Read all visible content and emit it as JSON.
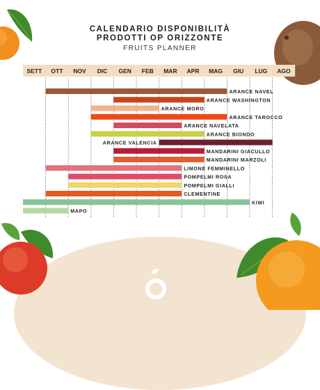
{
  "title": {
    "line1": "CALENDARIO DISPONIBILITÀ",
    "line2": "PRODOTTI OP ORIZZONTE",
    "subtitle": "FRUITS PLANNER"
  },
  "chart_data": {
    "type": "gantt",
    "months": [
      "SETT",
      "OTT",
      "NOV",
      "DIC",
      "GEN",
      "FEB",
      "MAR",
      "APR",
      "MAG",
      "GIU",
      "LUG",
      "AGO"
    ],
    "grid": "vertical dotted lines between months",
    "products": [
      {
        "name": "ARANCE NAVEL",
        "start": 1.0,
        "end": 9.0,
        "color": "#9b5a34"
      },
      {
        "name": "ARANCE WASHINGTON",
        "start": 4.0,
        "end": 8.0,
        "color": "#c4461c"
      },
      {
        "name": "ARANCE MORO",
        "start": 3.0,
        "end": 6.0,
        "color": "#f0b48d"
      },
      {
        "name": "ARANCE TAROCCO",
        "start": 3.0,
        "end": 9.0,
        "color": "#ec4a1a"
      },
      {
        "name": "ARANCE NAVELATA",
        "start": 4.0,
        "end": 7.0,
        "color": "#d24b60"
      },
      {
        "name": "ARANCE BIONDO",
        "start": 3.0,
        "end": 8.0,
        "color": "#c9d04a"
      },
      {
        "name": "ARANCE VALENCIA",
        "start": 6.0,
        "end": 11.0,
        "color": "#6e1f2e"
      },
      {
        "name": "MANDARINI GIACULLO",
        "start": 4.0,
        "end": 8.0,
        "color": "#b51d3a"
      },
      {
        "name": "MANDARINI MARZOLI",
        "start": 4.0,
        "end": 8.0,
        "color": "#de5f33"
      },
      {
        "name": "LIMONE FEMMINELLO",
        "start": 1.0,
        "end": 7.0,
        "color": "#e3727c"
      },
      {
        "name": "POMPELMI ROSA",
        "start": 2.0,
        "end": 7.0,
        "color": "#de4a6b"
      },
      {
        "name": "POMPELMI GIALLI",
        "start": 2.0,
        "end": 7.0,
        "color": "#f0d56e"
      },
      {
        "name": "CLEMENTINE",
        "start": 1.0,
        "end": 7.0,
        "color": "#e55a22"
      },
      {
        "name": "KIWI",
        "start": 0.0,
        "end": 10.0,
        "color": "#87c39a"
      },
      {
        "name": "MAPO",
        "start": 0.0,
        "end": 2.0,
        "color": "#b7d8a6"
      }
    ]
  },
  "colors": {
    "month_header_bg": "#f4ddc1",
    "arc_bg": "#f3e3d1",
    "label_color": "#1f1f1f"
  },
  "icons": {
    "top_left": "orange-fruit-icon",
    "top_right": "kiwi-fruit-icon",
    "bottom_left": "blood-orange-icon",
    "bottom_right": "orange-with-leaves-icon",
    "bottom_center": "op-orizzonte-logo-icon"
  }
}
